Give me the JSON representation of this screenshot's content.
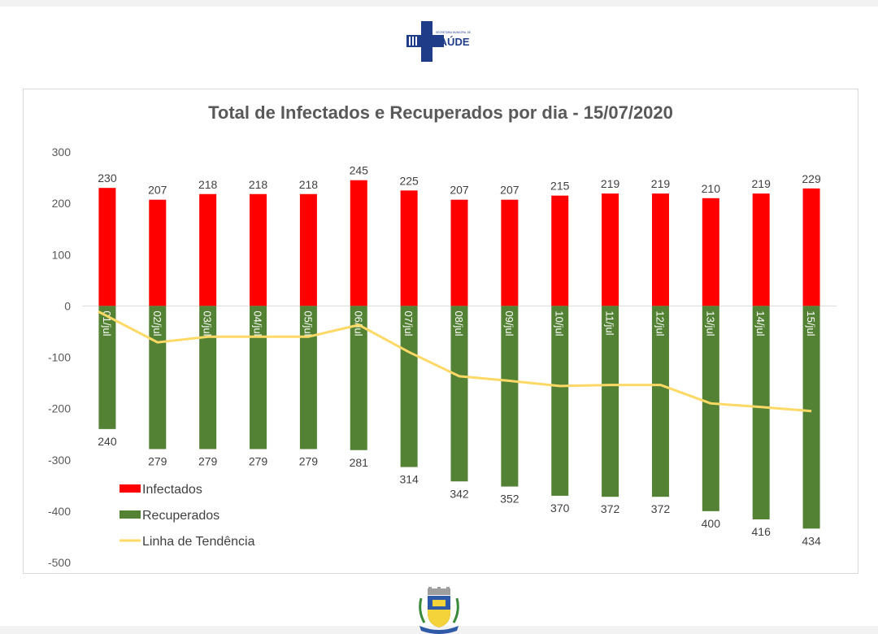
{
  "header_logo": {
    "org_small": "SECRETARIA MUNICIPAL DE",
    "org_name": "SAÚDE"
  },
  "chart_data": {
    "type": "bar",
    "title": "Total de Infectados e Recuperados por dia - 15/07/2020",
    "xlabel": "",
    "ylabel": "",
    "ylim": [
      -500,
      300
    ],
    "yticks": [
      300,
      200,
      100,
      0,
      -100,
      -200,
      -300,
      -400,
      -500
    ],
    "grid": false,
    "categories": [
      "01/jul",
      "02/jul",
      "03/jul",
      "04/jul",
      "05/jul",
      "06/jul",
      "07/jul",
      "08/jul",
      "09/jul",
      "10/jul",
      "11/jul",
      "12/jul",
      "13/jul",
      "14/jul",
      "15/jul"
    ],
    "series": [
      {
        "name": "Infectados",
        "type": "bar",
        "color": "#ff0000",
        "values": [
          230,
          207,
          218,
          218,
          218,
          245,
          225,
          207,
          207,
          215,
          219,
          219,
          210,
          219,
          229
        ],
        "labels": [
          "230",
          "207",
          "218",
          "218",
          "218",
          "245",
          "225",
          "207",
          "207",
          "215",
          "219",
          "219",
          "210",
          "219",
          "229"
        ]
      },
      {
        "name": "Recuperados",
        "type": "bar",
        "color": "#548235",
        "values": [
          -240,
          -279,
          -279,
          -279,
          -279,
          -281,
          -314,
          -342,
          -352,
          -370,
          -372,
          -372,
          -400,
          -416,
          -434
        ],
        "labels": [
          "240",
          "279",
          "279",
          "279",
          "279",
          "281",
          "314",
          "342",
          "352",
          "370",
          "372",
          "372",
          "400",
          "416",
          "434"
        ]
      },
      {
        "name": "Linha de Tendência",
        "type": "line",
        "color": "#ffd966",
        "values": [
          -11,
          -71,
          -60,
          -60,
          -60,
          -37,
          -90,
          -137,
          -146,
          -156,
          -154,
          -154,
          -190,
          -197,
          -205
        ]
      }
    ],
    "legend": {
      "position": "bottom-left",
      "items": [
        "Infectados",
        "Recuperados",
        "Linha de Tendência"
      ]
    }
  }
}
